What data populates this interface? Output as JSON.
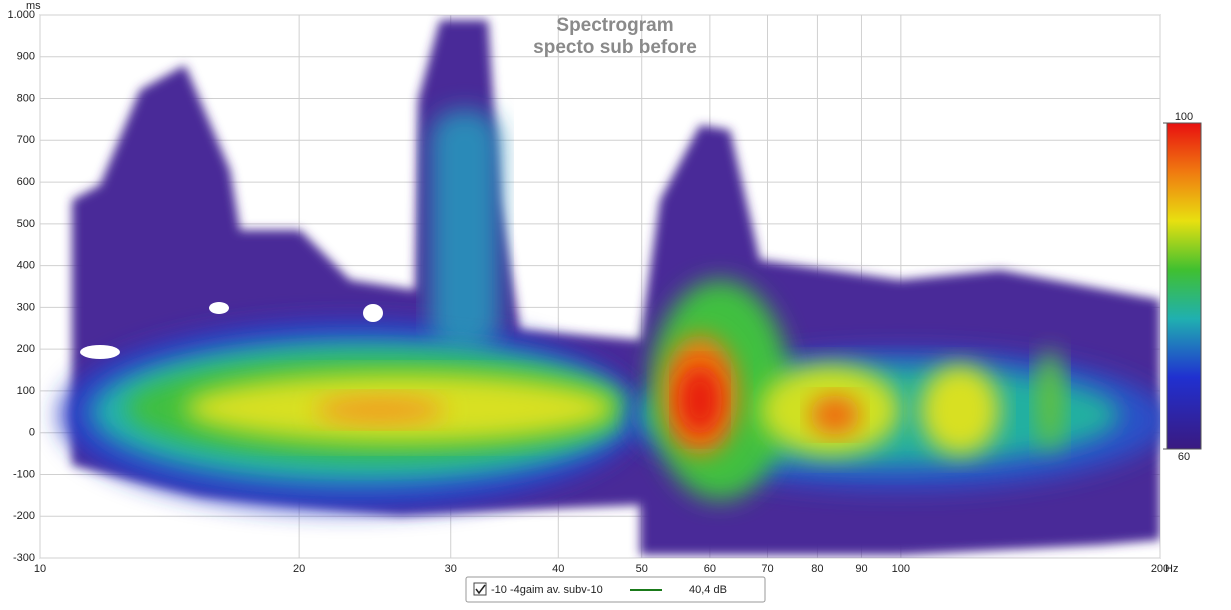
{
  "chart_data": {
    "type": "spectrogram",
    "title": "Spectrogram",
    "subtitle": "specto sub before",
    "x_unit": "Hz",
    "y_unit": "ms",
    "xscale": "log",
    "xlim": [
      10,
      200
    ],
    "xticks": [
      10,
      20,
      30,
      40,
      50,
      60,
      70,
      80,
      90,
      100,
      200
    ],
    "ylim": [
      -300,
      1000
    ],
    "yticks": [
      {
        "value": 1000,
        "label": "1.000"
      },
      900,
      800,
      700,
      600,
      500,
      400,
      300,
      200,
      100,
      0,
      -100,
      -200,
      -300
    ],
    "grid": true,
    "colorbar": {
      "lim": [
        60,
        100
      ],
      "ticks": [
        60,
        100
      ]
    },
    "legend": {
      "name": "-10 -4gaim av. subv-10",
      "color": "#1a7a1a",
      "value_label": "40,4 dB"
    }
  }
}
